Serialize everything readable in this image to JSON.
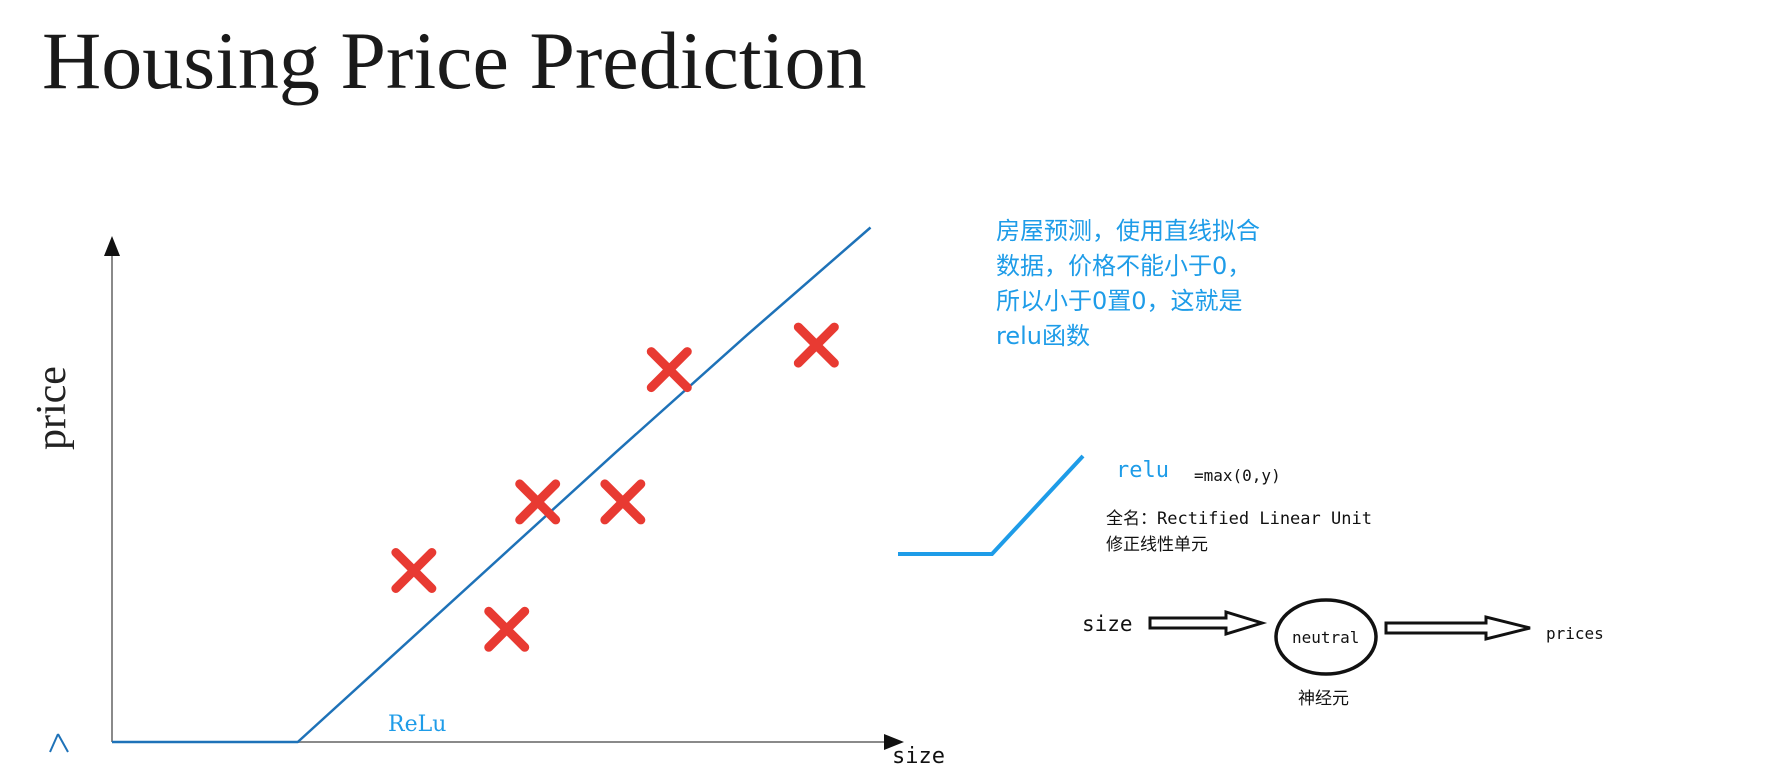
{
  "slide": {
    "title": "Housing Price Prediction"
  },
  "chart_data": {
    "type": "scatter",
    "title": "Housing Price Prediction",
    "xlabel": "size",
    "ylabel": "price",
    "xlim": [
      0,
      10
    ],
    "ylim": [
      0,
      10
    ],
    "grid": false,
    "points": [
      {
        "x": 3.9,
        "y": 3.5
      },
      {
        "x": 5.1,
        "y": 2.3
      },
      {
        "x": 5.5,
        "y": 4.9
      },
      {
        "x": 6.6,
        "y": 4.9
      },
      {
        "x": 7.2,
        "y": 7.6
      },
      {
        "x": 9.1,
        "y": 8.1
      }
    ],
    "fit_line": [
      {
        "x": 0.0,
        "y": 0.0
      },
      {
        "x": 2.4,
        "y": 0.0
      },
      {
        "x": 6.5,
        "y": 5.9
      },
      {
        "x": 8.2,
        "y": 8.3
      },
      {
        "x": 9.8,
        "y": 10.5
      }
    ],
    "marker_color": "#e83a32",
    "line_color": "#1e72b8",
    "fit_label": "ReLu"
  },
  "annotation": {
    "note": "房屋预测，使用直线拟合数据，价格不能小于0，所以小于0置0，这就是relu函数",
    "relu_word": "relu",
    "relu_formula": "=max(0,y)",
    "fullname_line1": "全名：Rectified Linear Unit",
    "fullname_line2": "修正线性单元",
    "accent_color": "#1e9ce8"
  },
  "neuron": {
    "input": "size",
    "node": "neutral",
    "output": "prices",
    "caption": "神经元"
  }
}
